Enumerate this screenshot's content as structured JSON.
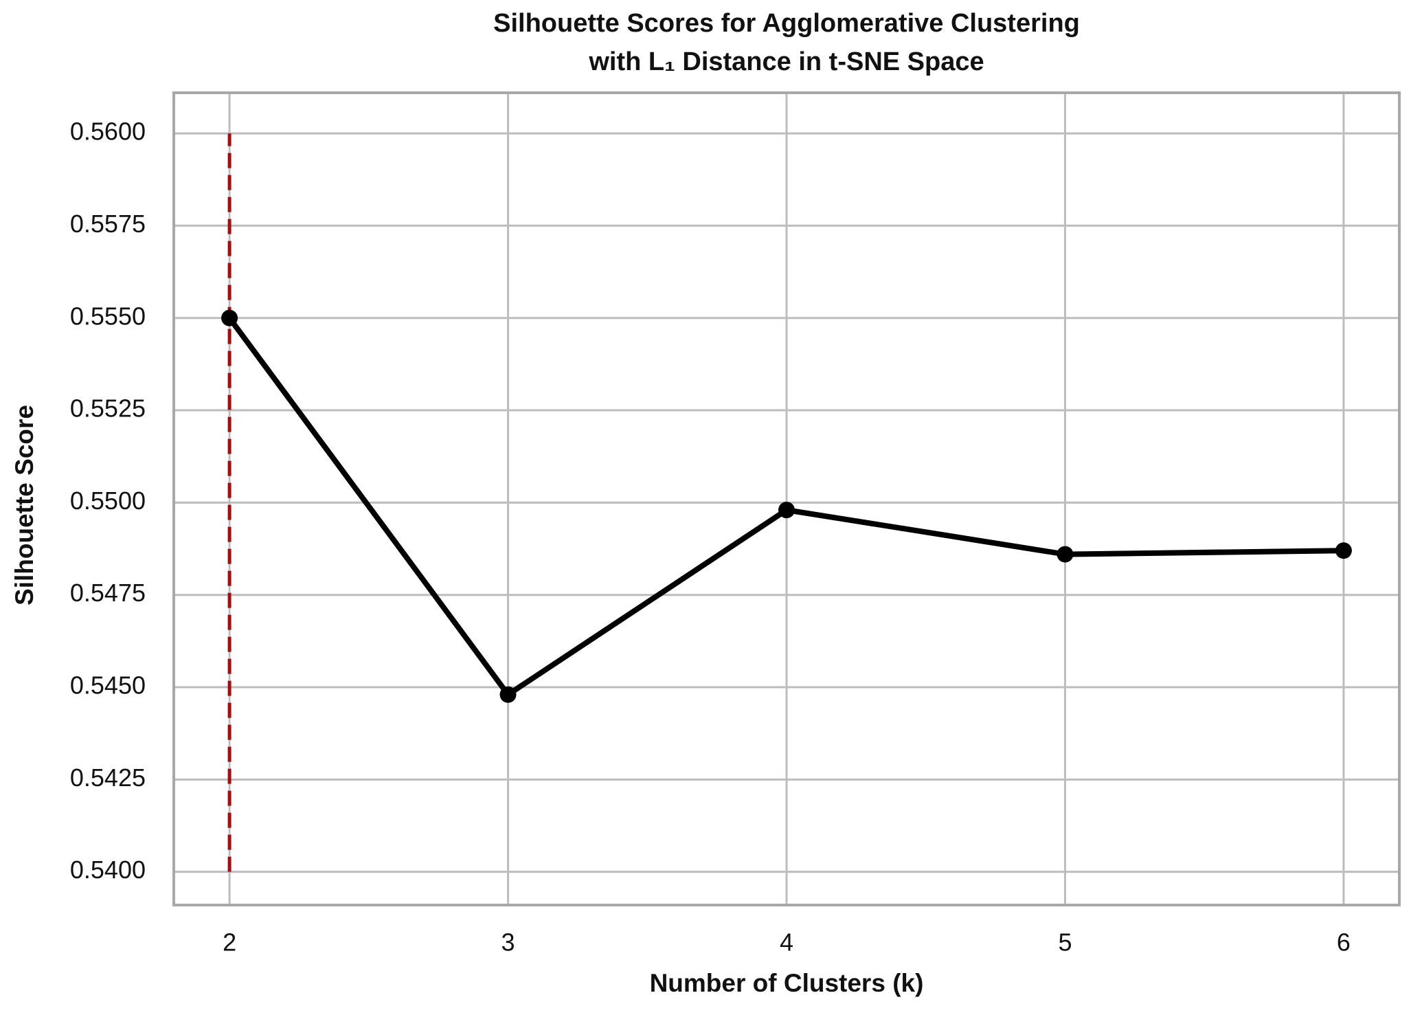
{
  "chart_data": {
    "type": "line",
    "title": [
      "Silhouette Scores for Agglomerative Clustering",
      "with L₁ Distance in t-SNE Space"
    ],
    "xlabel": "Number of Clusters (k)",
    "ylabel": "Silhouette Score",
    "x": [
      2,
      3,
      4,
      5,
      6
    ],
    "values": [
      0.555,
      0.5448,
      0.5498,
      0.5486,
      0.5487
    ],
    "color": "#000000",
    "xlim": [
      1.8,
      6.2
    ],
    "ylim": [
      0.5391,
      0.5611
    ],
    "xticks": [
      2,
      3,
      4,
      5,
      6
    ],
    "yticks": [
      {
        "value": 0.54,
        "label": "0.5400"
      },
      0.5425,
      {
        "value": 0.545,
        "label": "0.5450"
      },
      0.5475,
      {
        "value": 0.55,
        "label": "0.5500"
      },
      0.5525,
      {
        "value": 0.555,
        "label": "0.5550"
      },
      0.5575,
      {
        "value": 0.56,
        "label": "0.5600"
      }
    ],
    "grid": true,
    "vline": {
      "x": 2,
      "ymin": 0.54,
      "ymax": 0.56,
      "color": "#a01010",
      "style": "dashed"
    }
  }
}
